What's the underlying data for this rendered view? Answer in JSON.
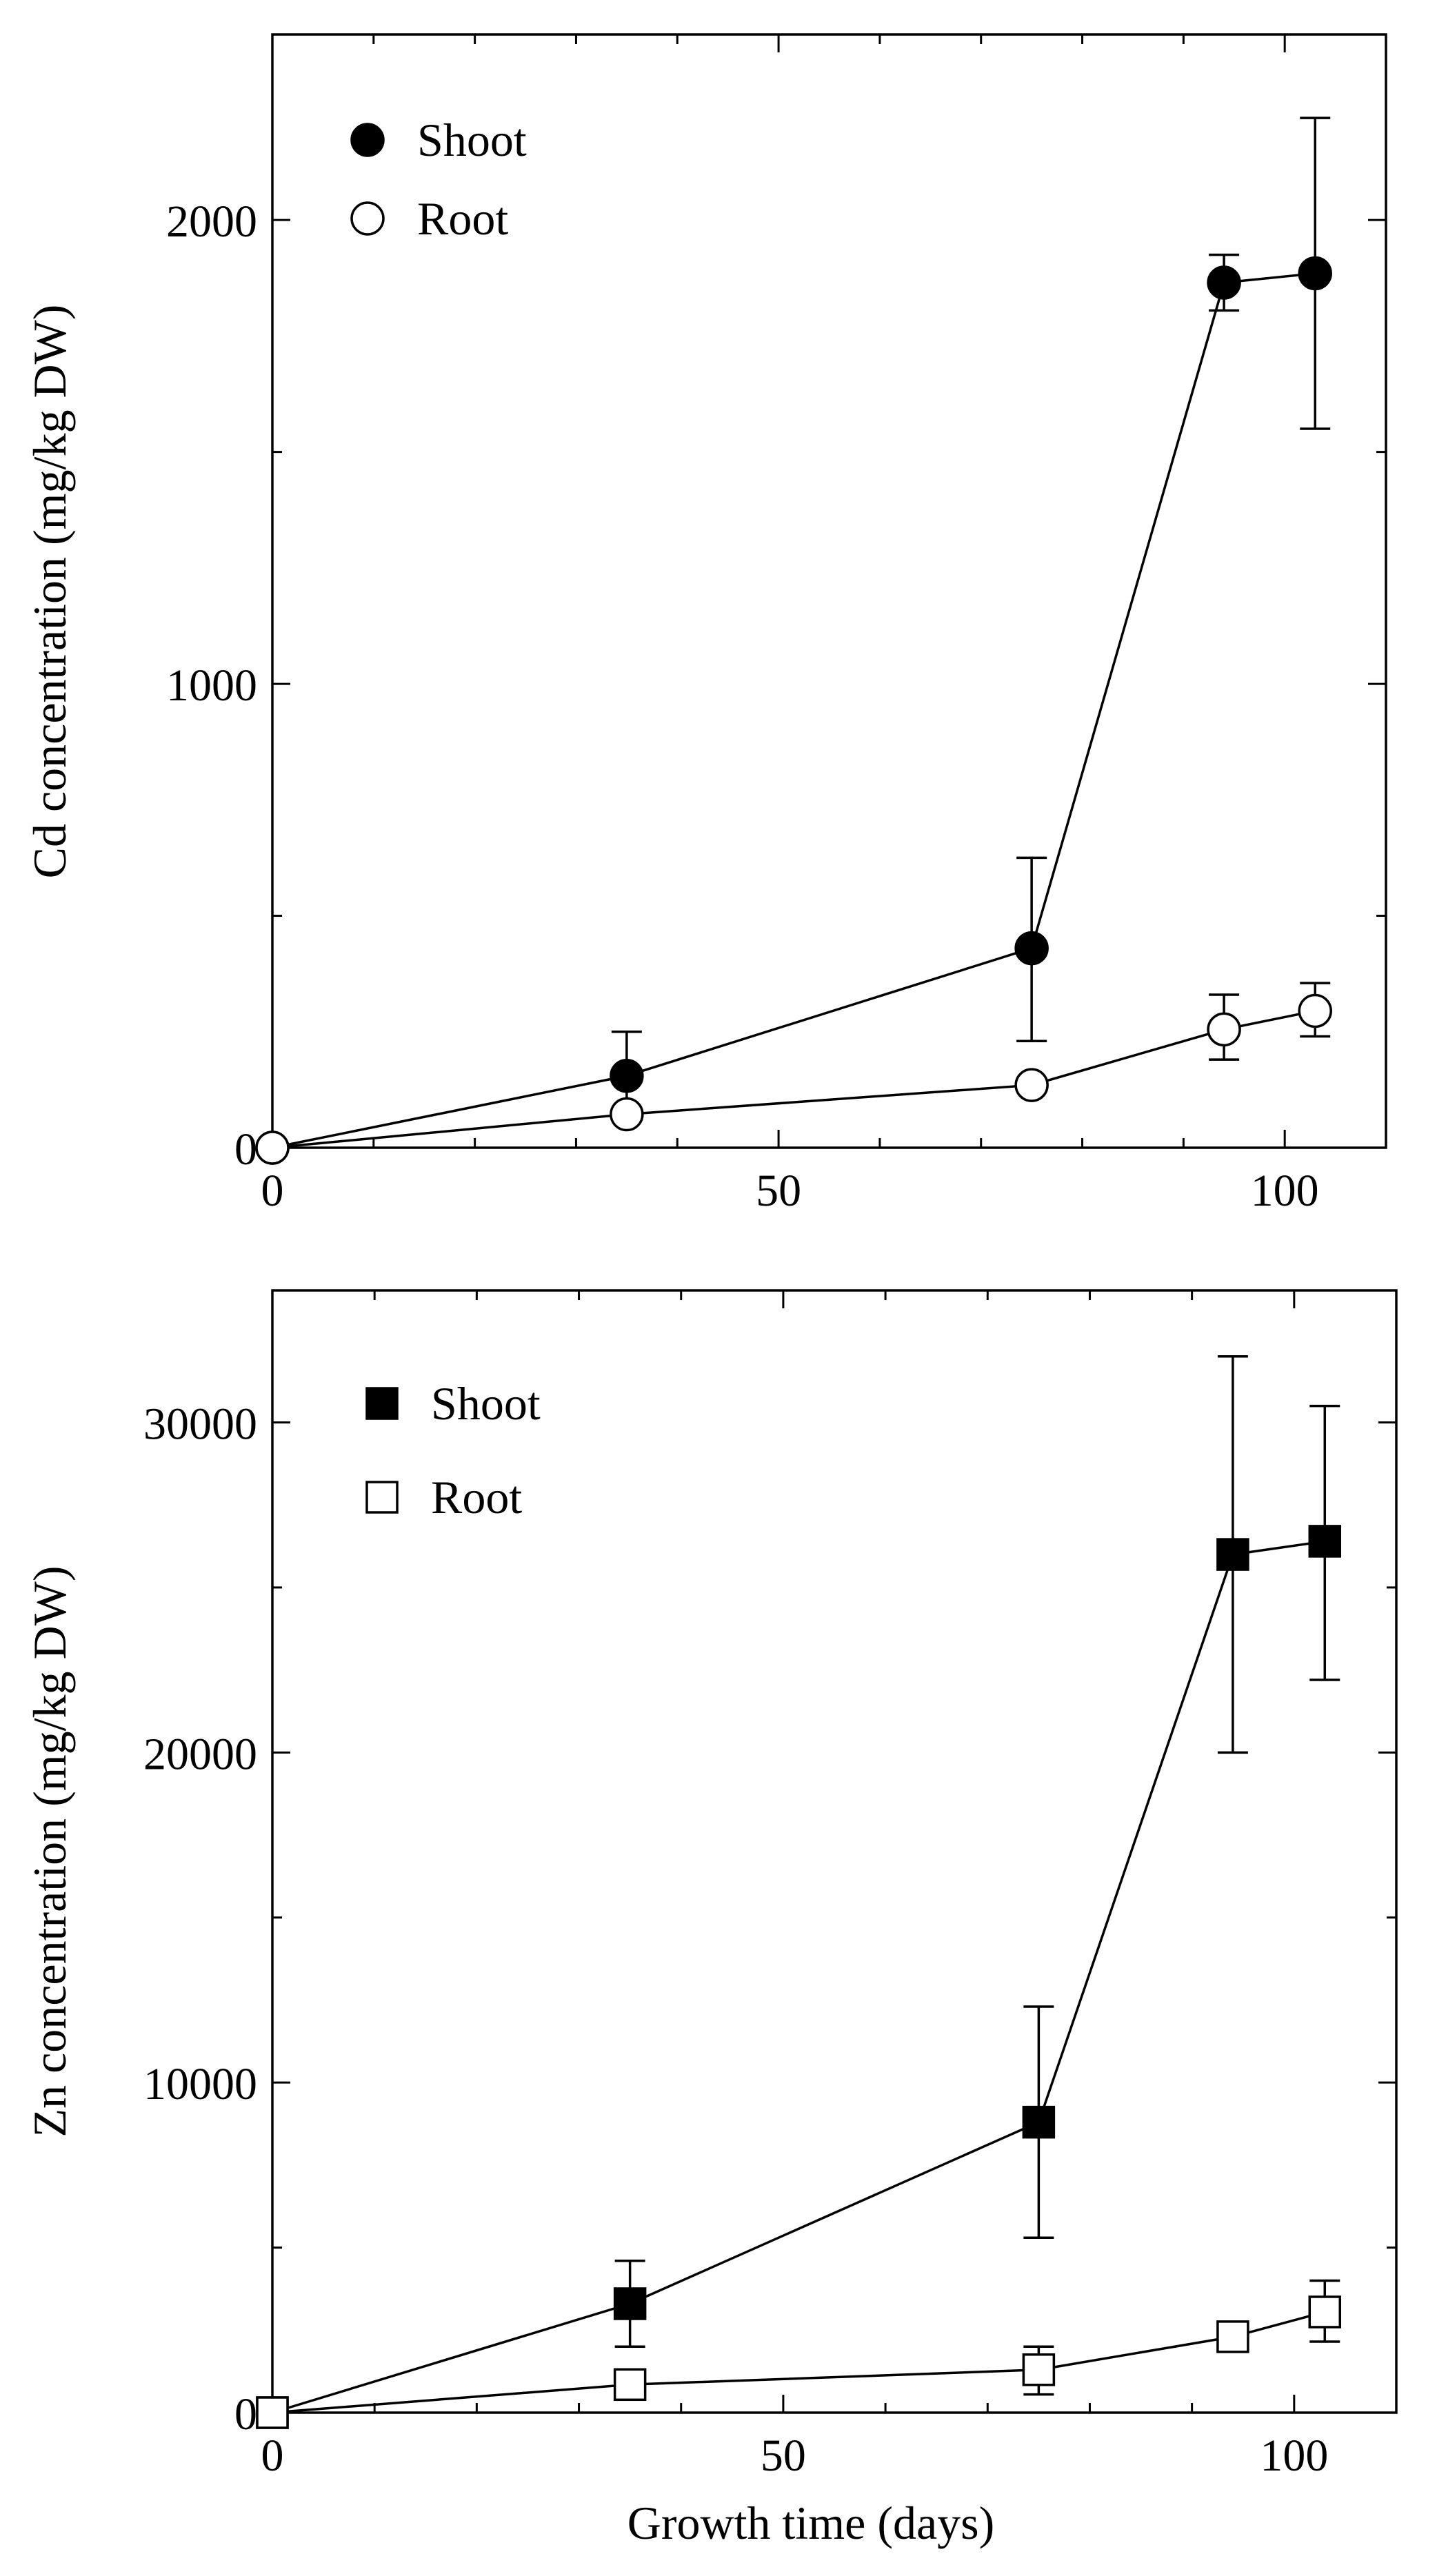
{
  "chart_data": [
    {
      "type": "line",
      "id": "cd",
      "title": "",
      "xlabel": "",
      "ylabel": "Cd concentration (mg/kg DW)",
      "xlim": [
        0,
        110
      ],
      "ylim": [
        0,
        2400
      ],
      "x_ticks": [
        0,
        50,
        100
      ],
      "x_tick_labels": [
        "0",
        "50",
        "100"
      ],
      "y_ticks": [
        0,
        1000,
        2000
      ],
      "y_tick_labels": [
        "0",
        "1000",
        "2000"
      ],
      "x_minor_step": 10,
      "y_minor_step": 500,
      "grid": false,
      "legend_position": "top-left",
      "series": [
        {
          "name": "Shoot",
          "marker": "filled-circle",
          "x": [
            0,
            35,
            75,
            94,
            103
          ],
          "y": [
            0,
            155,
            430,
            1865,
            1885
          ],
          "err_low": [
            0,
            85,
            200,
            60,
            335
          ],
          "err_high": [
            0,
            95,
            195,
            60,
            335
          ]
        },
        {
          "name": "Root",
          "marker": "open-circle",
          "x": [
            0,
            35,
            75,
            94,
            103
          ],
          "y": [
            0,
            72,
            135,
            255,
            295
          ],
          "err_low": [
            0,
            0,
            0,
            65,
            55
          ],
          "err_high": [
            0,
            0,
            0,
            75,
            60
          ]
        }
      ]
    },
    {
      "type": "line",
      "id": "zn",
      "title": "",
      "xlabel": "Growth time (days)",
      "ylabel": "Zn concentration (mg/kg DW)",
      "xlim": [
        0,
        110
      ],
      "ylim": [
        0,
        34000
      ],
      "x_ticks": [
        0,
        50,
        100
      ],
      "x_tick_labels": [
        "0",
        "50",
        "100"
      ],
      "y_ticks": [
        0,
        10000,
        20000,
        30000
      ],
      "y_tick_labels": [
        "0",
        "10000",
        "20000",
        "30000"
      ],
      "x_minor_step": 10,
      "y_minor_step": 5000,
      "grid": false,
      "legend_position": "top-left",
      "series": [
        {
          "name": "Shoot",
          "marker": "filled-square",
          "x": [
            0,
            35,
            75,
            94,
            103
          ],
          "y": [
            0,
            3300,
            8800,
            26000,
            26400
          ],
          "err_low": [
            0,
            1300,
            3500,
            6000,
            4200
          ],
          "err_high": [
            0,
            1300,
            3500,
            6000,
            4100
          ]
        },
        {
          "name": "Root",
          "marker": "open-square",
          "x": [
            0,
            35,
            75,
            94,
            103
          ],
          "y": [
            0,
            850,
            1300,
            2300,
            3050
          ],
          "err_low": [
            0,
            0,
            750,
            0,
            900
          ],
          "err_high": [
            0,
            0,
            700,
            0,
            950
          ]
        }
      ]
    }
  ]
}
